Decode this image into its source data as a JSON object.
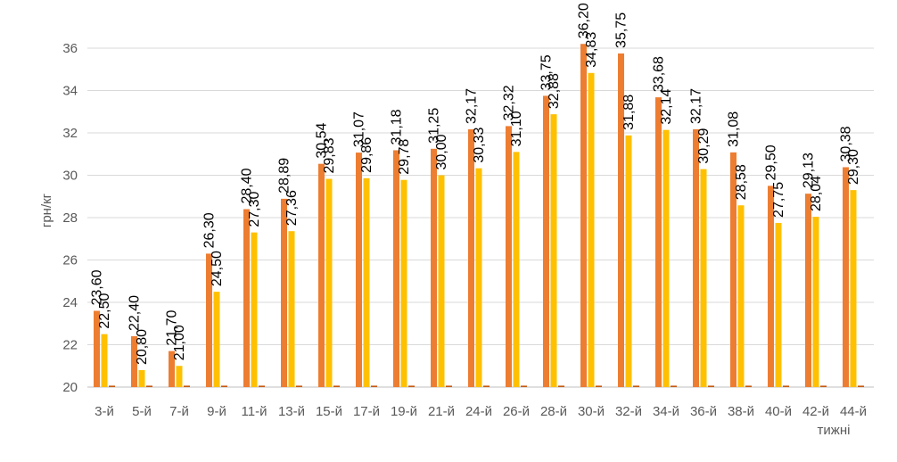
{
  "chart_data": {
    "type": "bar",
    "ylabel": "грн/кг",
    "xlabel": "тижні",
    "ylim": [
      20,
      37
    ],
    "yticks": [
      "20",
      "22",
      "24",
      "26",
      "28",
      "30",
      "32",
      "34",
      "36"
    ],
    "grid": true,
    "categories": [
      "3-й",
      "5-й",
      "7-й",
      "9-й",
      "11-й",
      "13-й",
      "15-й",
      "17-й",
      "19-й",
      "21-й",
      "24-й",
      "26-й",
      "28-й",
      "30-й",
      "32-й",
      "34-й",
      "36-й",
      "38-й",
      "40-й",
      "42-й",
      "44-й"
    ],
    "series": [
      {
        "color": "#ED7D31",
        "values": [
          23.6,
          22.4,
          21.7,
          26.3,
          28.4,
          28.89,
          30.54,
          31.07,
          31.18,
          31.25,
          32.17,
          32.32,
          33.75,
          36.2,
          35.75,
          33.68,
          32.17,
          31.08,
          29.5,
          29.13,
          30.38
        ],
        "labels": [
          "23,60",
          "22,40",
          "21,70",
          "26,30",
          "28,40",
          "28,89",
          "30,54",
          "31,07",
          "31,18",
          "31,25",
          "32,17",
          "32,32",
          "33,75",
          "36,20",
          "35,75",
          "33,68",
          "32,17",
          "31,08",
          "29,50",
          "29,13",
          "30,38"
        ]
      },
      {
        "color": "#FFC000",
        "values": [
          22.5,
          20.8,
          21.0,
          24.5,
          27.3,
          27.36,
          29.83,
          29.86,
          29.78,
          30.0,
          30.33,
          31.1,
          32.88,
          34.83,
          31.88,
          32.14,
          30.29,
          28.58,
          27.75,
          28.04,
          29.3
        ],
        "labels": [
          "22,50",
          "20,80",
          "21,00",
          "24,50",
          "27,30",
          "27,36",
          "29,83",
          "29,86",
          "29,78",
          "30,00",
          "30,33",
          "31,10",
          "32,88",
          "34,83",
          "31,88",
          "32,14",
          "30,29",
          "28,58",
          "27,75",
          "28,04",
          "29,30"
        ]
      },
      {
        "color": "#C55A11",
        "values": [
          20,
          20,
          20,
          20,
          20,
          20,
          20,
          20,
          20,
          20,
          20,
          20,
          20,
          20,
          20,
          20,
          20,
          20,
          20,
          20,
          20
        ]
      }
    ]
  }
}
